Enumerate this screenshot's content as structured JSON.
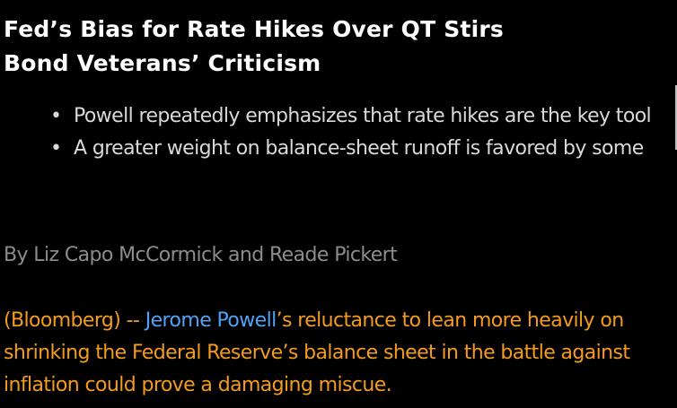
{
  "colors": {
    "background": "#000000",
    "headline": "#ffffff",
    "bullet_text": "#d9d9d9",
    "byline": "#8c8c8c",
    "body_text": "#f59b1d",
    "link": "#4fa3f7",
    "scroll_edge": "#bfbfbf"
  },
  "article": {
    "headline_line1": "Fed’s Bias for Rate Hikes Over QT Stirs",
    "headline_line2": "Bond Veterans’ Criticism",
    "bullet_marker": "•",
    "bullets": [
      "Powell repeatedly emphasizes that rate hikes are the key tool",
      "A greater weight on balance-sheet runoff is favored by some"
    ],
    "byline": "By Liz Capo McCormick and Reade Pickert",
    "dateline": "(Bloomberg) -- ",
    "person_link": "Jerome Powell",
    "body_rest": "’s reluctance to lean more heavily on shrinking the Federal Reserve’s balance sheet in the battle against inflation could prove a damaging miscue."
  }
}
